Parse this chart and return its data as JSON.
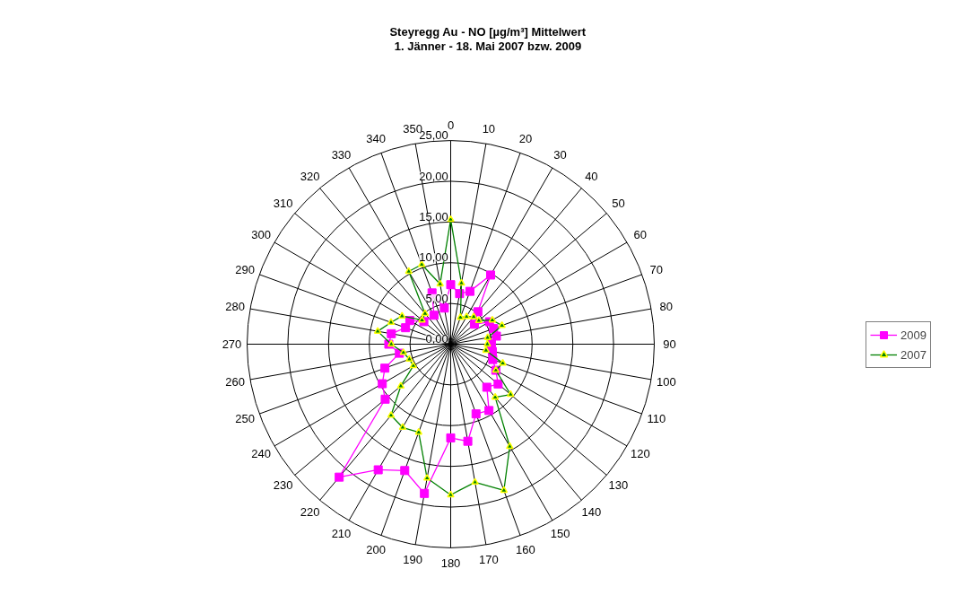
{
  "chart_data": {
    "type": "radar",
    "title": "Steyregg Au - NO [µg/m³] Mittelwert",
    "subtitle": "1. Jänner - 18. Mai 2007 bzw. 2009",
    "categories": [
      "0",
      "10",
      "20",
      "30",
      "40",
      "50",
      "60",
      "70",
      "80",
      "90",
      "100",
      "110",
      "120",
      "130",
      "140",
      "150",
      "160",
      "170",
      "180",
      "190",
      "200",
      "210",
      "220",
      "230",
      "240",
      "250",
      "260",
      "270",
      "280",
      "290",
      "300",
      "310",
      "320",
      "330",
      "340",
      "350"
    ],
    "ylim": [
      0,
      25
    ],
    "yticks": [
      {
        "value": 0,
        "label": "0,00"
      },
      {
        "value": 5,
        "label": "5,00"
      },
      {
        "value": 10,
        "label": "10,00"
      },
      {
        "value": 15,
        "label": "15,00"
      },
      {
        "value": 20,
        "label": "20,00"
      },
      {
        "value": 25,
        "label": "25,00"
      }
    ],
    "grid": true,
    "legend": "right",
    "series": [
      {
        "name": "2009",
        "color": "#ff00ff",
        "marker": "square",
        "values": [
          7.3,
          6.3,
          6.9,
          9.8,
          5.2,
          3.8,
          5.5,
          5.6,
          5.7,
          5.0,
          5.2,
          5.5,
          6.4,
          7.6,
          6.9,
          9.4,
          9.1,
          12.1,
          11.5,
          18.6,
          16.5,
          17.8,
          21.3,
          10.5,
          9.7,
          8.6,
          6.4,
          7.6,
          7.4,
          5.9,
          5.8,
          4.3,
          null,
          4.1,
          6.7,
          4.5
        ]
      },
      {
        "name": "2007",
        "color": "#008000",
        "marker": "triangle",
        "values": [
          15.3,
          7.6,
          3.5,
          3.9,
          4.4,
          4.5,
          5.9,
          6.7,
          4.6,
          4.5,
          4.4,
          6.8,
          6.4,
          9.6,
          8.5,
          14.5,
          19.1,
          17.2,
          18.5,
          16.7,
          11.5,
          11.8,
          11.4,
          8.0,
          5.3,
          5.4,
          5.9,
          7.3,
          9.1,
          7.8,
          6.9,
          4.6,
          4.9,
          10.3,
          10.4,
          7.5
        ]
      }
    ]
  }
}
